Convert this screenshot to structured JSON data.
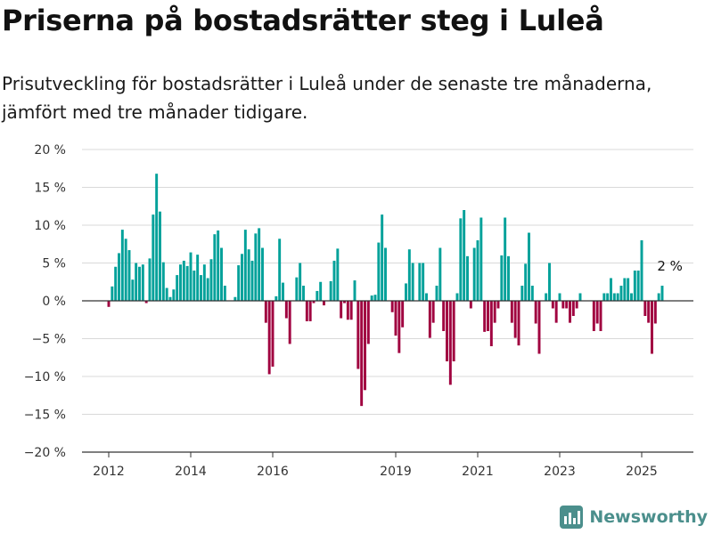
{
  "title": "Priserna på bostadsrätter steg i Luleå",
  "subtitle": "Prisutveckling för bostadsrätter i Luleå under de senaste tre månaderna, jämfört med tre månader tidigare.",
  "brand": {
    "name": "Newsworthy",
    "icon": "bar-chart-logo-icon"
  },
  "colors": {
    "positive": "#00a19a",
    "negative": "#a0003f",
    "grid": "#d9d9d9",
    "axis": "#333333"
  },
  "chart_data": {
    "type": "bar",
    "y_unit": "%",
    "ylim": [
      -20,
      20
    ],
    "yticks": [
      20,
      15,
      10,
      5,
      0,
      -5,
      -10,
      -15,
      -20
    ],
    "ytick_labels": [
      "20 %",
      "15 %",
      "10 %",
      "5 %",
      "0 %",
      "−5 %",
      "−10 %",
      "−15 %",
      "−20 %"
    ],
    "xticks": [
      {
        "label": "2012",
        "date": "2012-01"
      },
      {
        "label": "2014",
        "date": "2014-01"
      },
      {
        "label": "2016",
        "date": "2016-01"
      },
      {
        "label": "2019",
        "date": "2019-01"
      },
      {
        "label": "2021",
        "date": "2021-01"
      },
      {
        "label": "2023",
        "date": "2023-01"
      },
      {
        "label": "2025",
        "date": "2025-01"
      }
    ],
    "grid": true,
    "annotation": {
      "text": "2 %",
      "date": "2025-05"
    },
    "series": [
      {
        "start": "2012-01",
        "frequency": "monthly",
        "values": [
          -0.8,
          1.9,
          4.5,
          6.3,
          9.4,
          8.2,
          6.7,
          2.8,
          5.0,
          4.5,
          4.8,
          -0.3,
          5.6,
          11.4,
          16.8,
          11.8,
          5.1,
          1.7,
          0.5,
          1.5,
          3.4,
          4.8,
          5.3,
          4.6,
          6.4,
          4.0,
          6.1,
          3.4,
          4.8,
          3.0,
          5.5,
          8.8,
          9.3,
          7.0,
          2.0,
          0.0,
          0.0,
          0.5,
          4.7,
          6.2,
          9.4,
          6.8,
          5.3,
          8.9,
          9.6,
          7.0,
          -2.9,
          -9.7,
          -8.7,
          0.6,
          8.2,
          2.4,
          -2.3,
          -5.7,
          0.0,
          3.1,
          5.0,
          2.0,
          -2.7,
          -2.7,
          -0.3,
          1.3,
          2.5,
          -0.6,
          0.0,
          2.6,
          5.3,
          6.9,
          -2.3,
          -0.3,
          -2.5,
          -2.5,
          2.7,
          -9.0,
          -13.9,
          -11.8,
          -5.7,
          0.7,
          0.8,
          7.7,
          11.4,
          7.0,
          0.0,
          -1.5,
          -4.6,
          -6.9,
          -3.5,
          2.3,
          6.8,
          5.0,
          0.0,
          5.0,
          5.0,
          1.0,
          -4.9,
          -2.9,
          2.0,
          7.0,
          -4.0,
          -8.0,
          -11.1,
          -8.0,
          1.0,
          10.9,
          12.0,
          5.9,
          -1.0,
          7.0,
          8.0,
          11.0,
          -4.1,
          -4.0,
          -6.0,
          -2.9,
          -1.0,
          6.0,
          11.0,
          5.9,
          -2.9,
          -4.9,
          -5.9,
          2.0,
          4.9,
          9.0,
          2.0,
          -3.0,
          -7.0,
          0.0,
          1.0,
          5.0,
          -1.0,
          -2.9,
          1.0,
          -1.0,
          -1.0,
          -2.9,
          -2.0,
          -1.0,
          1.0,
          0.0,
          0.0,
          0.0,
          -4.0,
          -3.0,
          -4.0,
          1.0,
          1.0,
          3.0,
          1.0,
          1.0,
          2.0,
          3.0,
          3.0,
          1.0,
          4.0,
          4.0,
          8.0,
          -2.0,
          -2.9,
          -7.0,
          -3.0,
          1.0,
          2.0
        ]
      }
    ]
  }
}
